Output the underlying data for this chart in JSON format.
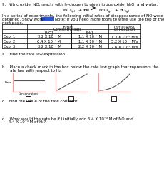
{
  "title": "9.  Nitric oxide, NO, reacts with hydrogen to give nitrous oxide, N₂O, and water.",
  "intro1": "In a series of experiments, the following initial rates of disappearance of NO were",
  "intro2": "obtained. Show work!",
  "intro3": "Note: If you need more room to write use the top of the",
  "intro4": "next page.",
  "rows": [
    [
      "Exp. 1",
      "3.2 X 10⁻³ M",
      "1.1 X 10⁻³ M",
      "1.3 X 10⁻⁵ M/s"
    ],
    [
      "Exp. 2",
      "6.4 X 10⁻³ M",
      "1.1 X 10⁻³ M",
      "5.2 X 10⁻⁵ M/s"
    ],
    [
      "Exp. 3",
      "3.2 X 10⁻³ M",
      "2.2 X 10⁻³ M",
      "2.6 X 10⁻⁵ M/s"
    ]
  ],
  "part_a1": "a.   Find the rate law expression.",
  "part_b1": "b.   Place a check mark in the box below the rate law graph that represents the",
  "part_b2": "     rate law with respect to H₂:",
  "part_c1": "c.   Find the value of the rate constant.",
  "part_d1": "d.   What would the rate be if I initially add 6.4 X 10⁻³ M of NO and",
  "part_d2": "     4.4 X 10⁻³ M of H₂?",
  "rate_label": "Rate",
  "conc_label": "Concentration",
  "bg": "#ffffff",
  "pink": "#ff9999",
  "gray": "#555555",
  "blue_box": "#3355cc"
}
